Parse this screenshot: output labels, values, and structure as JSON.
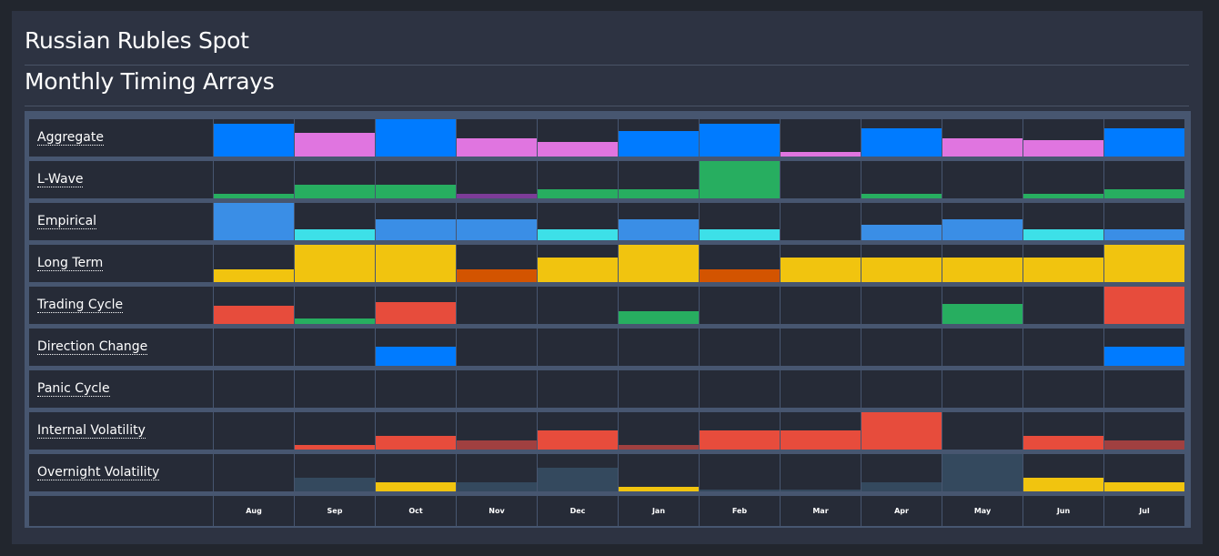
{
  "header": {
    "title": "Russian Rubles Spot",
    "subtitle": "Monthly Timing Arrays"
  },
  "months": [
    "Aug",
    "Sep",
    "Oct",
    "Nov",
    "Dec",
    "Jan",
    "Feb",
    "Mar",
    "Apr",
    "May",
    "Jun",
    "Jul"
  ],
  "colors": {
    "blue": "#007bff",
    "pink": "#e075e0",
    "green": "#27ae60",
    "purple": "#7d3c98",
    "lblue": "#3a8ee6",
    "cyan": "#3de0e8",
    "yellow": "#f1c40f",
    "orange": "#d35400",
    "red": "#e74c3c",
    "dred": "#a04040",
    "slate": "#34495e"
  },
  "rows": [
    {
      "label": "Aggregate",
      "values": [
        88,
        63,
        100,
        50,
        38,
        68,
        88,
        13,
        75,
        50,
        43,
        75
      ],
      "colors": [
        "blue",
        "pink",
        "blue",
        "pink",
        "pink",
        "blue",
        "blue",
        "pink",
        "blue",
        "pink",
        "pink",
        "blue"
      ]
    },
    {
      "label": "L-Wave",
      "values": [
        12,
        37,
        37,
        12,
        25,
        25,
        100,
        0,
        12,
        0,
        12,
        25
      ],
      "colors": [
        "green",
        "green",
        "green",
        "purple",
        "green",
        "green",
        "green",
        "green",
        "green",
        "green",
        "green",
        "green"
      ]
    },
    {
      "label": "Empirical",
      "values": [
        100,
        29,
        56,
        56,
        29,
        56,
        29,
        0,
        41,
        56,
        29,
        29
      ],
      "colors": [
        "lblue",
        "cyan",
        "lblue",
        "lblue",
        "cyan",
        "lblue",
        "cyan",
        "lblue",
        "lblue",
        "lblue",
        "cyan",
        "lblue"
      ]
    },
    {
      "label": "Long Term",
      "values": [
        34,
        100,
        100,
        34,
        66,
        100,
        34,
        66,
        66,
        66,
        66,
        100
      ],
      "colors": [
        "yellow",
        "yellow",
        "yellow",
        "orange",
        "yellow",
        "yellow",
        "orange",
        "yellow",
        "yellow",
        "yellow",
        "yellow",
        "yellow"
      ]
    },
    {
      "label": "Trading Cycle",
      "values": [
        49,
        15,
        59,
        0,
        0,
        34,
        0,
        0,
        0,
        54,
        0,
        100
      ],
      "colors": [
        "red",
        "green",
        "red",
        "red",
        "red",
        "green",
        "red",
        "red",
        "red",
        "green",
        "red",
        "red"
      ]
    },
    {
      "label": "Direction Change",
      "values": [
        0,
        0,
        51,
        0,
        0,
        0,
        0,
        0,
        0,
        0,
        0,
        51
      ],
      "colors": [
        "blue",
        "blue",
        "blue",
        "blue",
        "blue",
        "blue",
        "blue",
        "blue",
        "blue",
        "blue",
        "blue",
        "blue"
      ]
    },
    {
      "label": "Panic Cycle",
      "values": [
        0,
        0,
        0,
        0,
        0,
        0,
        0,
        0,
        0,
        0,
        0,
        0
      ],
      "colors": [
        "red",
        "red",
        "red",
        "red",
        "red",
        "red",
        "red",
        "red",
        "red",
        "red",
        "red",
        "red"
      ]
    },
    {
      "label": "Internal Volatility",
      "values": [
        0,
        12,
        37,
        25,
        51,
        12,
        51,
        51,
        100,
        0,
        37,
        25
      ],
      "colors": [
        "red",
        "red",
        "red",
        "dred",
        "red",
        "dred",
        "red",
        "red",
        "red",
        "red",
        "red",
        "dred"
      ]
    },
    {
      "label": "Overnight Volatility",
      "values": [
        0,
        37,
        25,
        25,
        63,
        12,
        5,
        5,
        25,
        100,
        37,
        25
      ],
      "colors": [
        "slate",
        "slate",
        "yellow",
        "slate",
        "slate",
        "yellow",
        "slate",
        "slate",
        "slate",
        "slate",
        "yellow",
        "yellow"
      ]
    }
  ]
}
